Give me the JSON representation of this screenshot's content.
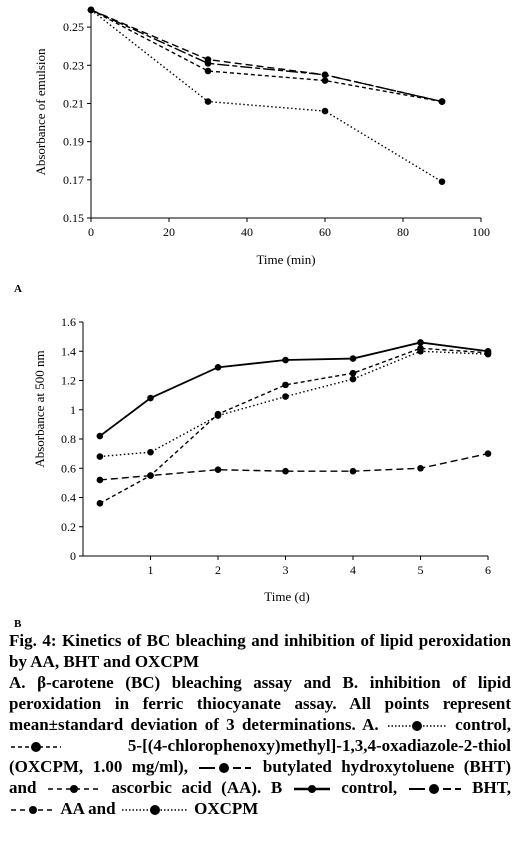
{
  "chart_data": [
    {
      "id": "A",
      "type": "line",
      "xlabel": "Time (min)",
      "ylabel": "Absorbance of emulsion",
      "xlim": [
        0,
        100
      ],
      "ylim": [
        0.15,
        0.26
      ],
      "xticks": [
        "0",
        "20",
        "40",
        "60",
        "80",
        "100"
      ],
      "yticks": [
        "0.15",
        "0.17",
        "0.19",
        "0.21",
        "0.23",
        "0.25"
      ],
      "x": [
        0,
        30,
        60,
        90
      ],
      "series": [
        {
          "key": "control",
          "values": [
            0.259,
            0.211,
            0.206,
            0.169
          ],
          "style": "dotted"
        },
        {
          "key": "oxcpm",
          "values": [
            0.259,
            0.233,
            0.225,
            0.211
          ],
          "style": "longdash"
        },
        {
          "key": "bht",
          "values": [
            0.259,
            0.231,
            0.225,
            0.211
          ],
          "style": "solid-dash"
        },
        {
          "key": "aa",
          "values": [
            0.259,
            0.227,
            0.222,
            0.211
          ],
          "style": "shortdash"
        }
      ]
    },
    {
      "id": "B",
      "type": "line",
      "xlabel": "Time (d)",
      "ylabel": "Absorbance at 500 nm",
      "xlim": [
        0,
        6
      ],
      "ylim": [
        0,
        1.6
      ],
      "xticks": [
        "1",
        "2",
        "3",
        "4",
        "5",
        "6"
      ],
      "yticks": [
        "0",
        "0.2",
        "0.4",
        "0.6",
        "0.8",
        "1",
        "1.2",
        "1.4",
        "1.6"
      ],
      "x": [
        0.25,
        1,
        2,
        3,
        4,
        5,
        6
      ],
      "series": [
        {
          "key": "control",
          "values": [
            0.82,
            1.08,
            1.29,
            1.34,
            1.35,
            1.46,
            1.4
          ],
          "style": "solid"
        },
        {
          "key": "bht",
          "values": [
            0.52,
            0.55,
            0.59,
            0.58,
            0.58,
            0.6,
            0.7
          ],
          "style": "longdash"
        },
        {
          "key": "aa",
          "values": [
            0.36,
            0.55,
            0.97,
            1.17,
            1.25,
            1.42,
            1.39
          ],
          "style": "shortdash"
        },
        {
          "key": "oxcpm",
          "values": [
            0.68,
            0.71,
            0.96,
            1.09,
            1.21,
            1.4,
            1.38
          ],
          "style": "dotted"
        }
      ]
    }
  ],
  "panel_labels": {
    "a": "A",
    "b": "B"
  },
  "caption": {
    "title": "Fig. 4: Kinetics of BC bleaching and inhibition of lipid peroxidation by AA, BHT and OXCPM",
    "line1": "A. β-carotene (BC) bleaching assay and B. inhibition of lipid peroxidation in ferric thiocyanate assay. All points represent mean±standard deviation of 3 determinations. A.",
    "a_control": "control,",
    "a_oxcpm": "5-[(4-chlorophenoxy)methyl]-1,3,4-oxadiazole-2-thiol (OXCPM, 1.00 mg/ml),",
    "a_bht": "butylated hydroxytoluene (BHT) and",
    "a_aa": "ascorbic acid (AA). B",
    "b_control": "control,",
    "b_bht": "BHT,",
    "b_aa": "AA and",
    "b_oxcpm": "OXCPM"
  }
}
